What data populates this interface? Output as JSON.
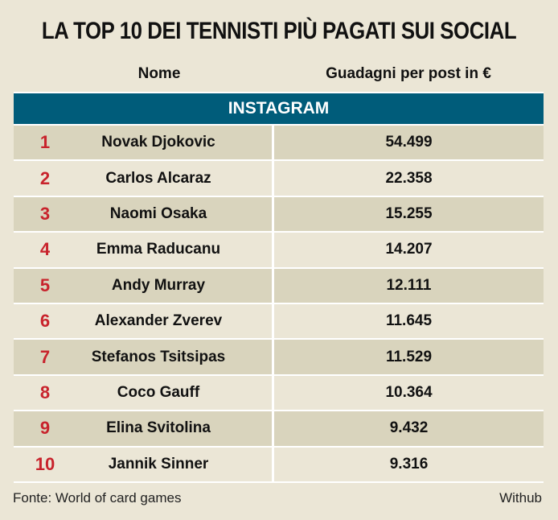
{
  "chart_data": {
    "type": "table",
    "title": "LA TOP 10 DEI TENNISTI PIÙ PAGATI SUI SOCIAL",
    "columns": [
      "Nome",
      "Guadagni per post in €"
    ],
    "section": "INSTAGRAM",
    "rows": [
      {
        "rank": "1",
        "name": "Novak Djokovic",
        "value": "54.499"
      },
      {
        "rank": "2",
        "name": "Carlos Alcaraz",
        "value": "22.358"
      },
      {
        "rank": "3",
        "name": "Naomi Osaka",
        "value": "15.255"
      },
      {
        "rank": "4",
        "name": "Emma Raducanu",
        "value": "14.207"
      },
      {
        "rank": "5",
        "name": "Andy Murray",
        "value": "12.111"
      },
      {
        "rank": "6",
        "name": "Alexander Zverev",
        "value": "11.645"
      },
      {
        "rank": "7",
        "name": "Stefanos Tsitsipas",
        "value": "11.529"
      },
      {
        "rank": "8",
        "name": "Coco Gauff",
        "value": "10.364"
      },
      {
        "rank": "9",
        "name": "Elina Svitolina",
        "value": "9.432"
      },
      {
        "rank": "10",
        "name": "Jannik Sinner",
        "value": "9.316"
      }
    ],
    "source": "Fonte: World of card games",
    "credit": "Withub"
  },
  "colors": {
    "background": "#ebe6d6",
    "row_shade": "#d9d4bd",
    "header_bar": "#005c7a",
    "rank_red": "#c8232c"
  }
}
